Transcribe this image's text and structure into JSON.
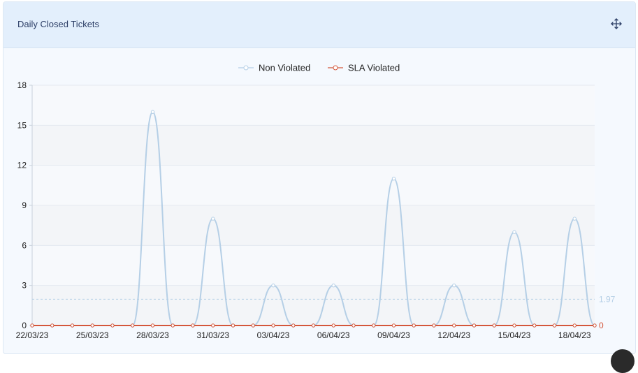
{
  "card": {
    "title": "Daily Closed Tickets",
    "icon": "move-arrows-icon"
  },
  "chart_data": {
    "type": "line",
    "smooth": true,
    "title": "Daily Closed Tickets",
    "categories": [
      "22/03/23",
      "23/03/23",
      "24/03/23",
      "25/03/23",
      "26/03/23",
      "27/03/23",
      "28/03/23",
      "29/03/23",
      "30/03/23",
      "31/03/23",
      "01/04/23",
      "02/04/23",
      "03/04/23",
      "04/04/23",
      "05/04/23",
      "06/04/23",
      "07/04/23",
      "08/04/23",
      "09/04/23",
      "10/04/23",
      "11/04/23",
      "12/04/23",
      "13/04/23",
      "14/04/23",
      "15/04/23",
      "16/04/23",
      "17/04/23",
      "18/04/23",
      "19/04/23"
    ],
    "tick_labels": [
      "22/03/23",
      "25/03/23",
      "28/03/23",
      "31/03/23",
      "03/04/23",
      "06/04/23",
      "09/04/23",
      "12/04/23",
      "15/04/23",
      "18/04/23"
    ],
    "series": [
      {
        "name": "Non Violated",
        "color": "#b5cfe6",
        "values": [
          0,
          0,
          0,
          0,
          0,
          0,
          16,
          0,
          0,
          8,
          0,
          0,
          3,
          0,
          0,
          3,
          0,
          0,
          11,
          0,
          0,
          3,
          0,
          0,
          7,
          0,
          0,
          8,
          0
        ]
      },
      {
        "name": "SLA Violated",
        "color": "#d4573b",
        "values": [
          0,
          0,
          0,
          0,
          0,
          0,
          0,
          0,
          0,
          0,
          0,
          0,
          0,
          0,
          0,
          0,
          0,
          0,
          0,
          0,
          0,
          0,
          0,
          0,
          0,
          0,
          0,
          0,
          0
        ]
      }
    ],
    "reference_lines": [
      {
        "series": "Non Violated",
        "value": 1.97,
        "label": "1.97",
        "color": "#b5cfe6"
      },
      {
        "series": "SLA Violated",
        "value": 0,
        "label": "0",
        "color": "#d4573b"
      }
    ],
    "ylim": [
      0,
      18
    ],
    "yticks": [
      0,
      3,
      6,
      9,
      12,
      15,
      18
    ],
    "legend_position": "top-center",
    "grid": true,
    "xlabel": "",
    "ylabel": ""
  }
}
